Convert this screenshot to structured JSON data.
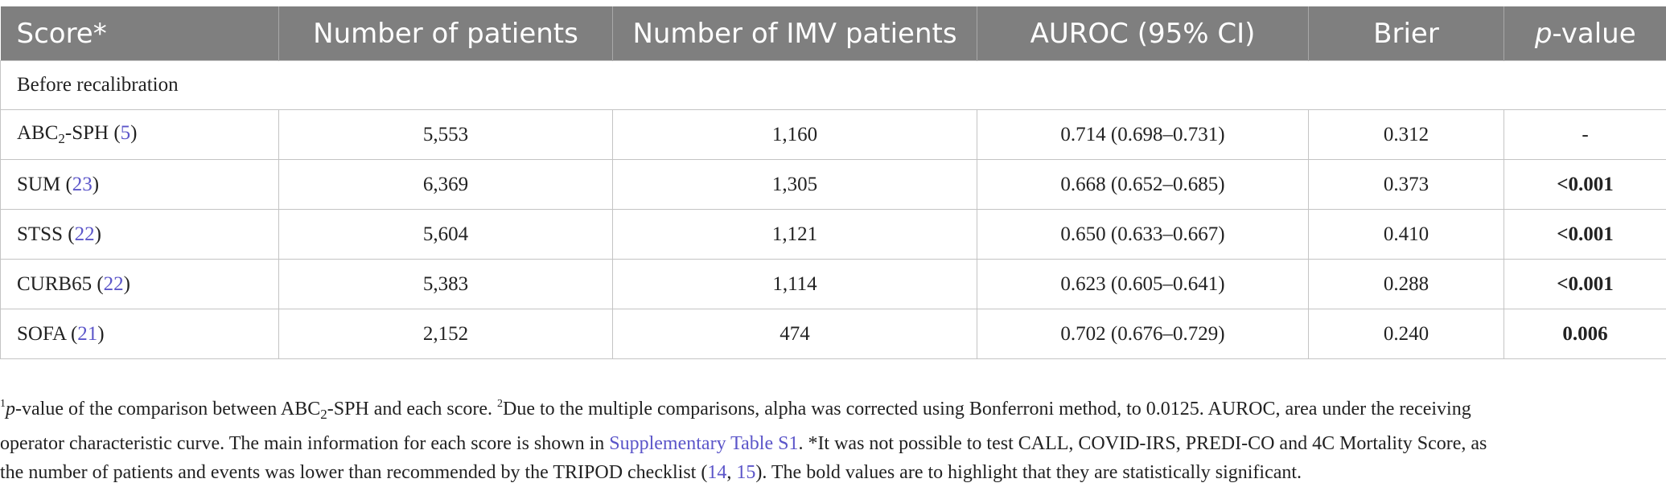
{
  "columns": [
    "Score*",
    "Number of patients",
    "Number of IMV patients",
    "AUROC (95% CI)",
    "Brier",
    "-value"
  ],
  "columns_p_prefix": "p",
  "section_label": "Before recalibration",
  "rows": [
    {
      "score": "ABC",
      "score_sub": "2",
      "score_suffix": "-SPH",
      "ref": "5",
      "patients": "5,553",
      "imv": "1,160",
      "auroc": "0.714 (0.698–0.731)",
      "brier": "0.312",
      "pvalue": "-",
      "bold": false
    },
    {
      "score": "SUM",
      "score_sub": "",
      "score_suffix": "",
      "ref": "23",
      "patients": "6,369",
      "imv": "1,305",
      "auroc": "0.668 (0.652–0.685)",
      "brier": "0.373",
      "pvalue": "<0.001",
      "bold": true
    },
    {
      "score": "STSS",
      "score_sub": "",
      "score_suffix": "",
      "ref": "22",
      "patients": "5,604",
      "imv": "1,121",
      "auroc": "0.650 (0.633–0.667)",
      "brier": "0.410",
      "pvalue": "<0.001",
      "bold": true
    },
    {
      "score": "CURB65",
      "score_sub": "",
      "score_suffix": "",
      "ref": "22",
      "patients": "5,383",
      "imv": "1,114",
      "auroc": "0.623 (0.605–0.641)",
      "brier": "0.288",
      "pvalue": "<0.001",
      "bold": true
    },
    {
      "score": "SOFA",
      "score_sub": "",
      "score_suffix": "",
      "ref": "21",
      "patients": "2,152",
      "imv": "474",
      "auroc": "0.702 (0.676–0.729)",
      "brier": "0.240",
      "pvalue": "0.006",
      "bold": true
    }
  ],
  "footnote": {
    "l1_sup1": "1",
    "l1_p": "p",
    "l1_a": "-value of the comparison between ABC",
    "l1_sub": "2",
    "l1_b": "-SPH and each score. ",
    "l1_sup2": "2",
    "l1_c": "Due to the multiple comparisons, alpha was corrected using Bonferroni method, to 0.0125. AUROC, area under the receiving",
    "l2_a": "operator characteristic curve. The main information for each score is shown in ",
    "l2_link": "Supplementary Table S1",
    "l2_b": ". *It was not possible to test CALL, COVID-IRS, PREDI-CO and 4C Mortality Score, as",
    "l3_a": "the number of patients and events was lower than recommended by the TRIPOD checklist (",
    "l3_ref1": "14",
    "l3_sep": ", ",
    "l3_ref2": "15",
    "l3_b": "). The bold values are to highlight that they are statistically significant."
  },
  "colors": {
    "header_bg": "#7f7f7f",
    "link": "#5b55c9",
    "border": "#c4c4c4"
  }
}
